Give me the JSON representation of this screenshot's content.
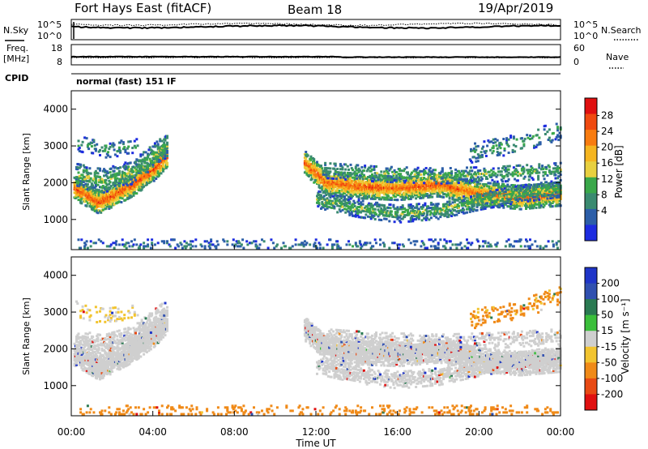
{
  "header": {
    "radar": "Fort Hays East (fitACF)",
    "beam": "Beam 18",
    "date": "19/Apr/2019"
  },
  "top_panels": {
    "nsky_label": "N.Sky",
    "nsearch_label": "N.Search",
    "noise_ticks": [
      "10^5",
      "10^0"
    ],
    "freq_label_1": "Freq.",
    "freq_label_2": "[MHz]",
    "freq_ticks": [
      "18",
      "8"
    ],
    "nave_label": "Nave",
    "nave_ticks": [
      "60",
      "0"
    ],
    "cpid_label": "CPID",
    "cpid_text": "normal (fast) 151 IF"
  },
  "colorbars": {
    "power": {
      "label": "Power [dB]",
      "ticks": [
        "28",
        "24",
        "20",
        "16",
        "12",
        "8",
        "4"
      ],
      "colors": [
        "#e01010",
        "#f04a10",
        "#f87c10",
        "#f5b520",
        "#e8d040",
        "#3aa84a",
        "#3a8a70",
        "#2c5ea8",
        "#1d2ce0"
      ]
    },
    "velocity": {
      "label": "Velocity [m s⁻¹]",
      "ticks": [
        "200",
        "100",
        "50",
        "15",
        "-15",
        "-50",
        "-100",
        "-200"
      ],
      "colors": [
        "#1f35c8",
        "#3050b0",
        "#2a7a52",
        "#3bbf3b",
        "#cfcfcf",
        "#f2c430",
        "#f08a18",
        "#e84a14",
        "#e01010"
      ]
    }
  },
  "chart_data": [
    {
      "type": "heatmap",
      "parameter": "power",
      "ylabel": "Slant Range [km]",
      "y_ticks": [
        "4000",
        "3000",
        "2000",
        "1000"
      ],
      "ylim": [
        180,
        4500
      ],
      "xlim": [
        0,
        24
      ],
      "bands": [
        {
          "t0": 0.1,
          "t1": 4.65,
          "path": [
            [
              0.1,
              1850
            ],
            [
              0.9,
              1600
            ],
            [
              1.3,
              1460
            ],
            [
              2.0,
              1650
            ],
            [
              3.0,
              1950
            ],
            [
              4.0,
              2350
            ],
            [
              4.6,
              2700
            ]
          ],
          "thickness": 300,
          "density": 0.95,
          "tone": 26
        },
        {
          "t0": 0.2,
          "t1": 4.65,
          "path": [
            [
              0.2,
              2200
            ],
            [
              1.5,
              2050
            ],
            [
              3.0,
              2300
            ],
            [
              4.6,
              3000
            ]
          ],
          "thickness": 320,
          "density": 0.45,
          "tone": 12
        },
        {
          "t0": 0.2,
          "t1": 3.2,
          "path": [
            [
              0.2,
              3100
            ],
            [
              1.5,
              2900
            ],
            [
              3.2,
              3000
            ]
          ],
          "thickness": 220,
          "density": 0.18,
          "tone": 9
        },
        {
          "t0": 11.4,
          "t1": 24.0,
          "path": [
            [
              11.4,
              2550
            ],
            [
              12.5,
              2000
            ],
            [
              14.0,
              1900
            ],
            [
              16.0,
              1850
            ],
            [
              18.0,
              1950
            ],
            [
              20.0,
              1700
            ],
            [
              22.0,
              1600
            ],
            [
              24.0,
              1700
            ]
          ],
          "thickness": 320,
          "density": 0.92,
          "tone": 25
        },
        {
          "t0": 12.0,
          "t1": 24.0,
          "path": [
            [
              12.0,
              1550
            ],
            [
              14.0,
              1300
            ],
            [
              16.0,
              1150
            ],
            [
              18.0,
              1250
            ],
            [
              20.0,
              1500
            ],
            [
              22.0,
              1700
            ],
            [
              24.0,
              1850
            ]
          ],
          "thickness": 230,
          "density": 0.5,
          "tone": 12
        },
        {
          "t0": 12.3,
          "t1": 24.0,
          "path": [
            [
              12.3,
              2350
            ],
            [
              15.0,
              2250
            ],
            [
              18.0,
              2200
            ],
            [
              21.0,
              2250
            ],
            [
              24.0,
              2350
            ]
          ],
          "thickness": 220,
          "density": 0.3,
          "tone": 11
        },
        {
          "t0": 19.5,
          "t1": 24.0,
          "path": [
            [
              19.5,
              2800
            ],
            [
              22.0,
              3100
            ],
            [
              24.0,
              3450
            ]
          ],
          "thickness": 260,
          "density": 0.2,
          "tone": 9
        },
        {
          "t0": 0.3,
          "t1": 24.0,
          "path": [
            [
              0.3,
              270
            ],
            [
              24.0,
              270
            ]
          ],
          "thickness": 180,
          "density": 0.16,
          "tone": 6
        }
      ]
    },
    {
      "type": "heatmap",
      "parameter": "velocity",
      "ylabel": "Slant Range [km]",
      "xlabel": "Time UT",
      "x_ticks": [
        "00:00",
        "04:00",
        "08:00",
        "12:00",
        "16:00",
        "20:00",
        "00:00"
      ],
      "y_ticks": [
        "4000",
        "3000",
        "2000",
        "1000"
      ],
      "ylim": [
        180,
        4500
      ],
      "xlim": [
        0,
        24
      ],
      "bands": [
        {
          "t0": 0.1,
          "t1": 4.65,
          "path": [
            [
              0.1,
              1850
            ],
            [
              0.9,
              1600
            ],
            [
              1.3,
              1460
            ],
            [
              2.0,
              1650
            ],
            [
              3.0,
              1950
            ],
            [
              4.0,
              2350
            ],
            [
              4.6,
              2700
            ]
          ],
          "thickness": 300,
          "density": 0.95,
          "tone": 0
        },
        {
          "t0": 0.2,
          "t1": 4.65,
          "path": [
            [
              0.2,
              2200
            ],
            [
              1.5,
              2050
            ],
            [
              3.0,
              2300
            ],
            [
              4.6,
              3000
            ]
          ],
          "thickness": 320,
          "density": 0.45,
          "tone": 0
        },
        {
          "t0": 0.2,
          "t1": 3.2,
          "path": [
            [
              0.2,
              3100
            ],
            [
              1.5,
              2900
            ],
            [
              3.2,
              3000
            ]
          ],
          "thickness": 220,
          "density": 0.18,
          "tone": -20
        },
        {
          "t0": 11.4,
          "t1": 24.0,
          "path": [
            [
              11.4,
              2550
            ],
            [
              12.5,
              2000
            ],
            [
              14.0,
              1900
            ],
            [
              16.0,
              1850
            ],
            [
              18.0,
              1950
            ],
            [
              20.0,
              1700
            ],
            [
              22.0,
              1600
            ],
            [
              24.0,
              1700
            ]
          ],
          "thickness": 320,
          "density": 0.92,
          "tone": 0
        },
        {
          "t0": 12.0,
          "t1": 24.0,
          "path": [
            [
              12.0,
              1550
            ],
            [
              14.0,
              1300
            ],
            [
              16.0,
              1150
            ],
            [
              18.0,
              1250
            ],
            [
              20.0,
              1500
            ],
            [
              22.0,
              1700
            ],
            [
              24.0,
              1850
            ]
          ],
          "thickness": 230,
          "density": 0.5,
          "tone": 0
        },
        {
          "t0": 12.3,
          "t1": 24.0,
          "path": [
            [
              12.3,
              2350
            ],
            [
              15.0,
              2250
            ],
            [
              18.0,
              2200
            ],
            [
              21.0,
              2250
            ],
            [
              24.0,
              2350
            ]
          ],
          "thickness": 220,
          "density": 0.3,
          "tone": 0
        },
        {
          "t0": 19.5,
          "t1": 24.0,
          "path": [
            [
              19.5,
              2800
            ],
            [
              22.0,
              3100
            ],
            [
              24.0,
              3450
            ]
          ],
          "thickness": 260,
          "density": 0.2,
          "tone": -40
        },
        {
          "t0": 0.3,
          "t1": 24.0,
          "path": [
            [
              0.3,
              270
            ],
            [
              24.0,
              270
            ]
          ],
          "thickness": 180,
          "density": 0.16,
          "tone": -60
        }
      ]
    }
  ]
}
